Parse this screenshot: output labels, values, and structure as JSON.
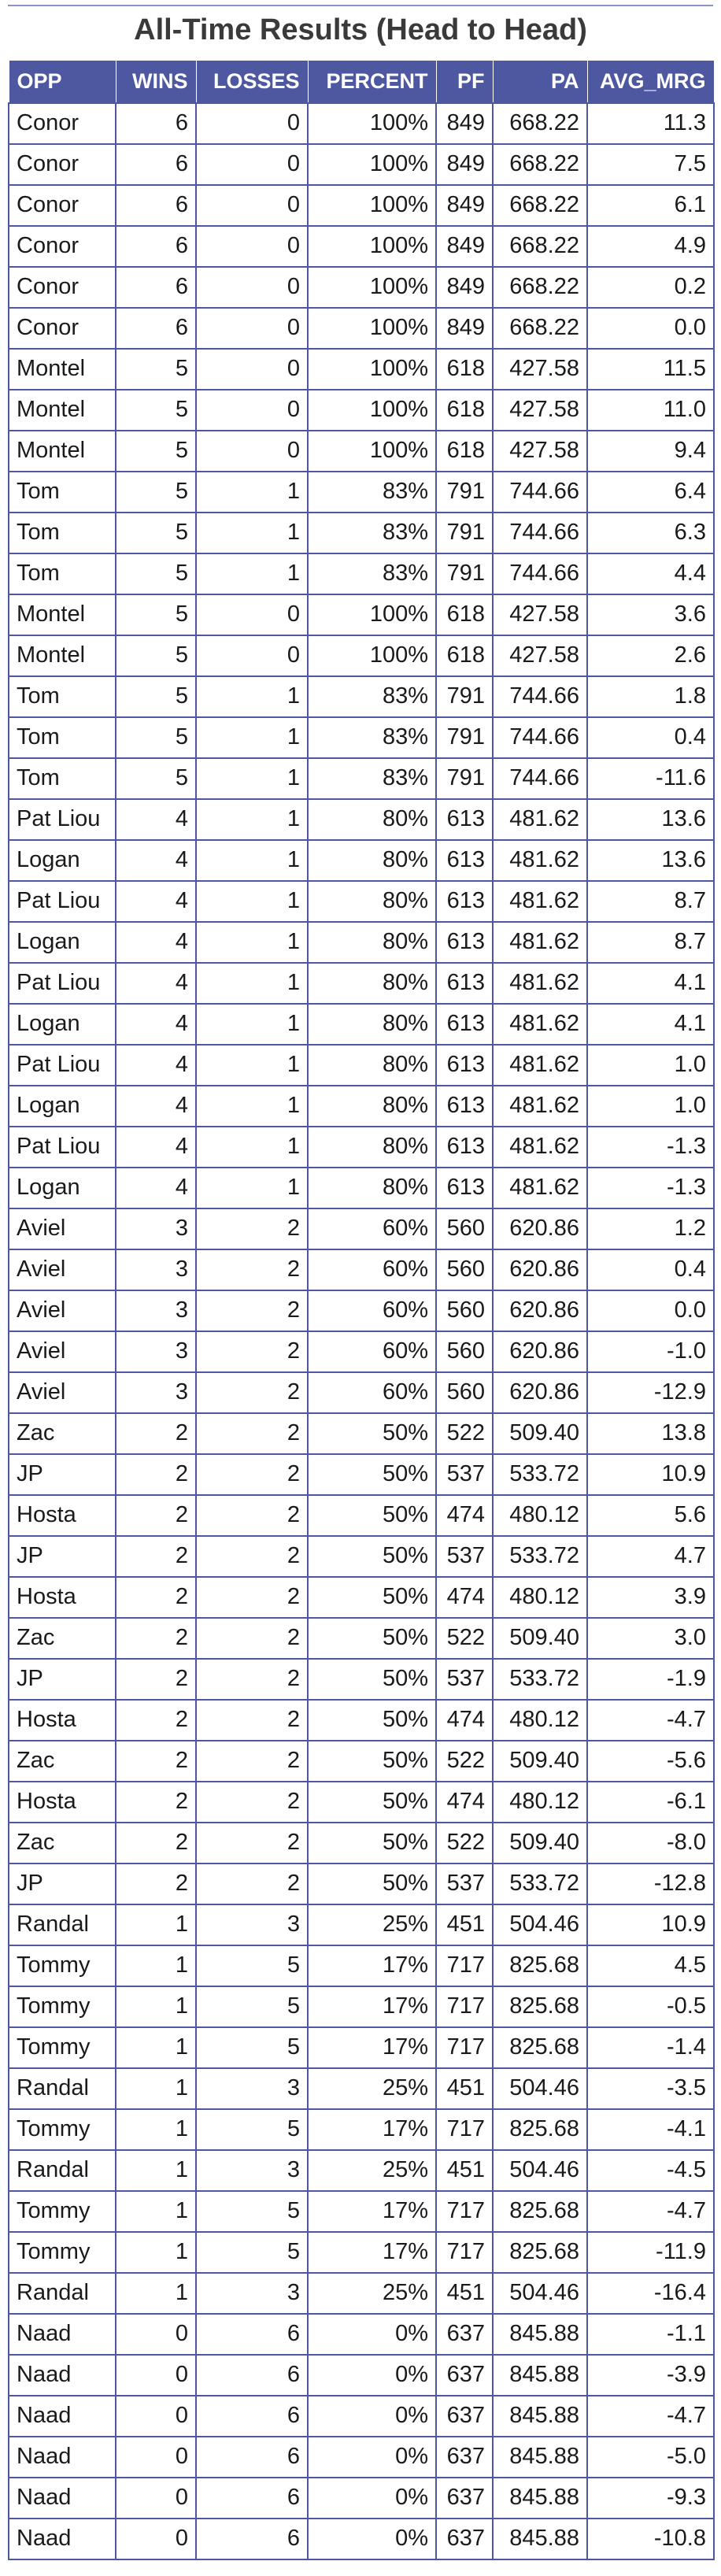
{
  "title": "All-Time Results (Head to Head)",
  "colors": {
    "header_bg": "#4e58a0",
    "header_text": "#ffffff",
    "grid": "#4e58a0"
  },
  "columns": [
    "OPP",
    "WINS",
    "LOSSES",
    "PERCENT",
    "PF",
    "PA",
    "AVG_MRG"
  ],
  "rows": [
    [
      "Conor",
      "6",
      "0",
      "100%",
      "849",
      "668.22",
      "11.3"
    ],
    [
      "Conor",
      "6",
      "0",
      "100%",
      "849",
      "668.22",
      "7.5"
    ],
    [
      "Conor",
      "6",
      "0",
      "100%",
      "849",
      "668.22",
      "6.1"
    ],
    [
      "Conor",
      "6",
      "0",
      "100%",
      "849",
      "668.22",
      "4.9"
    ],
    [
      "Conor",
      "6",
      "0",
      "100%",
      "849",
      "668.22",
      "0.2"
    ],
    [
      "Conor",
      "6",
      "0",
      "100%",
      "849",
      "668.22",
      "0.0"
    ],
    [
      "Montel",
      "5",
      "0",
      "100%",
      "618",
      "427.58",
      "11.5"
    ],
    [
      "Montel",
      "5",
      "0",
      "100%",
      "618",
      "427.58",
      "11.0"
    ],
    [
      "Montel",
      "5",
      "0",
      "100%",
      "618",
      "427.58",
      "9.4"
    ],
    [
      "Tom",
      "5",
      "1",
      "83%",
      "791",
      "744.66",
      "6.4"
    ],
    [
      "Tom",
      "5",
      "1",
      "83%",
      "791",
      "744.66",
      "6.3"
    ],
    [
      "Tom",
      "5",
      "1",
      "83%",
      "791",
      "744.66",
      "4.4"
    ],
    [
      "Montel",
      "5",
      "0",
      "100%",
      "618",
      "427.58",
      "3.6"
    ],
    [
      "Montel",
      "5",
      "0",
      "100%",
      "618",
      "427.58",
      "2.6"
    ],
    [
      "Tom",
      "5",
      "1",
      "83%",
      "791",
      "744.66",
      "1.8"
    ],
    [
      "Tom",
      "5",
      "1",
      "83%",
      "791",
      "744.66",
      "0.4"
    ],
    [
      "Tom",
      "5",
      "1",
      "83%",
      "791",
      "744.66",
      "-11.6"
    ],
    [
      "Pat Liou",
      "4",
      "1",
      "80%",
      "613",
      "481.62",
      "13.6"
    ],
    [
      "Logan",
      "4",
      "1",
      "80%",
      "613",
      "481.62",
      "13.6"
    ],
    [
      "Pat Liou",
      "4",
      "1",
      "80%",
      "613",
      "481.62",
      "8.7"
    ],
    [
      "Logan",
      "4",
      "1",
      "80%",
      "613",
      "481.62",
      "8.7"
    ],
    [
      "Pat Liou",
      "4",
      "1",
      "80%",
      "613",
      "481.62",
      "4.1"
    ],
    [
      "Logan",
      "4",
      "1",
      "80%",
      "613",
      "481.62",
      "4.1"
    ],
    [
      "Pat Liou",
      "4",
      "1",
      "80%",
      "613",
      "481.62",
      "1.0"
    ],
    [
      "Logan",
      "4",
      "1",
      "80%",
      "613",
      "481.62",
      "1.0"
    ],
    [
      "Pat Liou",
      "4",
      "1",
      "80%",
      "613",
      "481.62",
      "-1.3"
    ],
    [
      "Logan",
      "4",
      "1",
      "80%",
      "613",
      "481.62",
      "-1.3"
    ],
    [
      "Aviel",
      "3",
      "2",
      "60%",
      "560",
      "620.86",
      "1.2"
    ],
    [
      "Aviel",
      "3",
      "2",
      "60%",
      "560",
      "620.86",
      "0.4"
    ],
    [
      "Aviel",
      "3",
      "2",
      "60%",
      "560",
      "620.86",
      "0.0"
    ],
    [
      "Aviel",
      "3",
      "2",
      "60%",
      "560",
      "620.86",
      "-1.0"
    ],
    [
      "Aviel",
      "3",
      "2",
      "60%",
      "560",
      "620.86",
      "-12.9"
    ],
    [
      "Zac",
      "2",
      "2",
      "50%",
      "522",
      "509.40",
      "13.8"
    ],
    [
      "JP",
      "2",
      "2",
      "50%",
      "537",
      "533.72",
      "10.9"
    ],
    [
      "Hosta",
      "2",
      "2",
      "50%",
      "474",
      "480.12",
      "5.6"
    ],
    [
      "JP",
      "2",
      "2",
      "50%",
      "537",
      "533.72",
      "4.7"
    ],
    [
      "Hosta",
      "2",
      "2",
      "50%",
      "474",
      "480.12",
      "3.9"
    ],
    [
      "Zac",
      "2",
      "2",
      "50%",
      "522",
      "509.40",
      "3.0"
    ],
    [
      "JP",
      "2",
      "2",
      "50%",
      "537",
      "533.72",
      "-1.9"
    ],
    [
      "Hosta",
      "2",
      "2",
      "50%",
      "474",
      "480.12",
      "-4.7"
    ],
    [
      "Zac",
      "2",
      "2",
      "50%",
      "522",
      "509.40",
      "-5.6"
    ],
    [
      "Hosta",
      "2",
      "2",
      "50%",
      "474",
      "480.12",
      "-6.1"
    ],
    [
      "Zac",
      "2",
      "2",
      "50%",
      "522",
      "509.40",
      "-8.0"
    ],
    [
      "JP",
      "2",
      "2",
      "50%",
      "537",
      "533.72",
      "-12.8"
    ],
    [
      "Randal",
      "1",
      "3",
      "25%",
      "451",
      "504.46",
      "10.9"
    ],
    [
      "Tommy",
      "1",
      "5",
      "17%",
      "717",
      "825.68",
      "4.5"
    ],
    [
      "Tommy",
      "1",
      "5",
      "17%",
      "717",
      "825.68",
      "-0.5"
    ],
    [
      "Tommy",
      "1",
      "5",
      "17%",
      "717",
      "825.68",
      "-1.4"
    ],
    [
      "Randal",
      "1",
      "3",
      "25%",
      "451",
      "504.46",
      "-3.5"
    ],
    [
      "Tommy",
      "1",
      "5",
      "17%",
      "717",
      "825.68",
      "-4.1"
    ],
    [
      "Randal",
      "1",
      "3",
      "25%",
      "451",
      "504.46",
      "-4.5"
    ],
    [
      "Tommy",
      "1",
      "5",
      "17%",
      "717",
      "825.68",
      "-4.7"
    ],
    [
      "Tommy",
      "1",
      "5",
      "17%",
      "717",
      "825.68",
      "-11.9"
    ],
    [
      "Randal",
      "1",
      "3",
      "25%",
      "451",
      "504.46",
      "-16.4"
    ],
    [
      "Naad",
      "0",
      "6",
      "0%",
      "637",
      "845.88",
      "-1.1"
    ],
    [
      "Naad",
      "0",
      "6",
      "0%",
      "637",
      "845.88",
      "-3.9"
    ],
    [
      "Naad",
      "0",
      "6",
      "0%",
      "637",
      "845.88",
      "-4.7"
    ],
    [
      "Naad",
      "0",
      "6",
      "0%",
      "637",
      "845.88",
      "-5.0"
    ],
    [
      "Naad",
      "0",
      "6",
      "0%",
      "637",
      "845.88",
      "-9.3"
    ],
    [
      "Naad",
      "0",
      "6",
      "0%",
      "637",
      "845.88",
      "-10.8"
    ]
  ]
}
